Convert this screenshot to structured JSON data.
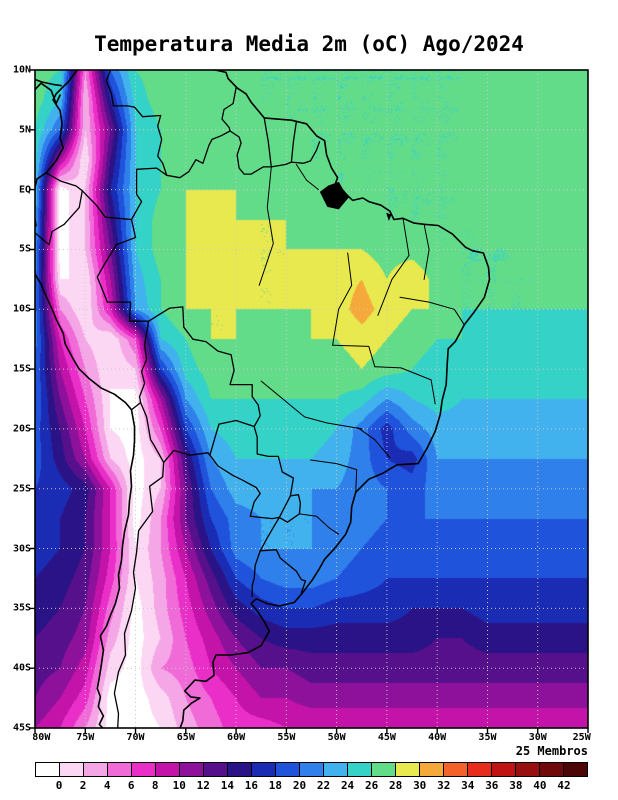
{
  "title": "Temperatura Media 2m (oC) Ago/2024",
  "ensemble_label": "25 Membros",
  "axes": {
    "lat_tick_labels": [
      "10N",
      "5N",
      "EQ",
      "5S",
      "10S",
      "15S",
      "20S",
      "25S",
      "30S",
      "35S",
      "40S",
      "45S"
    ],
    "lon_tick_labels": [
      "80W",
      "75W",
      "70W",
      "65W",
      "60W",
      "55W",
      "50W",
      "45W",
      "40W",
      "35W",
      "30W",
      "25W"
    ]
  },
  "colorbar": {
    "tick_labels": [
      "0",
      "2",
      "4",
      "6",
      "8",
      "10",
      "12",
      "14",
      "16",
      "18",
      "20",
      "22",
      "24",
      "26",
      "28",
      "30",
      "32",
      "34",
      "36",
      "38",
      "40",
      "42"
    ],
    "segment_colors": [
      "#ffffff",
      "#fbd7f3",
      "#f5a6e6",
      "#f06ad8",
      "#ea2fc8",
      "#c313a8",
      "#8d119b",
      "#57108c",
      "#2a1386",
      "#1b2cb4",
      "#2053dc",
      "#2f80ea",
      "#41b2ee",
      "#35d2c8",
      "#63dc8a",
      "#e8e84f",
      "#f6a93b",
      "#f2622a",
      "#e82c1c",
      "#c01414",
      "#980f0f",
      "#700a0a",
      "#4c0606"
    ]
  },
  "chart_data": {
    "type": "heatmap",
    "title": "Temperatura Media 2m (oC) Ago/2024",
    "variable": "Temperatura Media 2m",
    "units": "oC",
    "period": "Ago/2024",
    "ensemble_members": 25,
    "contour_interval": 2,
    "color_levels": [
      0,
      2,
      4,
      6,
      8,
      10,
      12,
      14,
      16,
      18,
      20,
      22,
      24,
      26,
      28,
      30,
      32,
      34,
      36,
      38,
      40,
      42
    ],
    "lon": [
      -80,
      -77.5,
      -75,
      -72.5,
      -70,
      -67.5,
      -65,
      -62.5,
      -60,
      -57.5,
      -55,
      -52.5,
      -50,
      -47.5,
      -45,
      -42.5,
      -40,
      -37.5,
      -35,
      -32.5,
      -30,
      -27.5,
      -25
    ],
    "lat_north_to_south": [
      10,
      7.5,
      5,
      2.5,
      0,
      -2.5,
      -5,
      -7.5,
      -10,
      -12.5,
      -15,
      -17.5,
      -20,
      -22.5,
      -25,
      -27.5,
      -30,
      -32.5,
      -35,
      -37.5,
      -40,
      -42.5,
      -45
    ],
    "values_north_to_south": [
      [
        27,
        26,
        4,
        20,
        26,
        27,
        27,
        27,
        26,
        26,
        26,
        26,
        26,
        26,
        26,
        26,
        26,
        26,
        27,
        27,
        27,
        27,
        27
      ],
      [
        27,
        24,
        2,
        16,
        25,
        27,
        27,
        27,
        27,
        26,
        26,
        26,
        26,
        26,
        26,
        26,
        26,
        26,
        27,
        27,
        27,
        27,
        27
      ],
      [
        26,
        20,
        2,
        12,
        24,
        26,
        27,
        27,
        27,
        27,
        26,
        26,
        26,
        26,
        26,
        26,
        26,
        26,
        27,
        27,
        27,
        27,
        27
      ],
      [
        25,
        10,
        0,
        14,
        24,
        26,
        27,
        28,
        27,
        27,
        27,
        26,
        26,
        26,
        26,
        26,
        26,
        26,
        27,
        27,
        27,
        27,
        27
      ],
      [
        24,
        -1,
        2,
        16,
        24,
        26,
        28,
        28,
        28,
        27,
        27,
        27,
        26,
        26,
        26,
        26,
        26,
        26,
        27,
        27,
        27,
        27,
        27
      ],
      [
        23,
        -1,
        2,
        14,
        24,
        27,
        28,
        29,
        28,
        28,
        28,
        27,
        27,
        27,
        26,
        26,
        26,
        26,
        26,
        27,
        27,
        27,
        27
      ],
      [
        22,
        -1,
        2,
        12,
        24,
        27,
        28,
        29,
        29,
        28,
        28,
        28,
        28,
        28,
        27,
        27,
        26,
        26,
        26,
        26,
        27,
        27,
        27
      ],
      [
        21,
        0,
        0,
        10,
        23,
        26,
        28,
        29,
        29,
        28,
        28,
        29,
        29,
        30,
        28,
        30,
        27,
        26,
        26,
        26,
        26,
        27,
        27
      ],
      [
        21,
        4,
        0,
        8,
        22,
        26,
        28,
        28,
        28,
        28,
        28,
        28,
        29,
        31,
        29,
        28,
        28,
        26,
        26,
        26,
        26,
        26,
        26
      ],
      [
        21,
        8,
        2,
        0,
        6,
        24,
        26,
        28,
        28,
        27,
        27,
        28,
        28,
        29,
        28,
        27,
        26,
        26,
        25,
        25,
        25,
        25,
        25
      ],
      [
        20,
        10,
        4,
        0,
        2,
        18,
        25,
        27,
        27,
        27,
        27,
        27,
        27,
        28,
        27,
        26,
        25,
        25,
        25,
        25,
        25,
        25,
        24
      ],
      [
        20,
        12,
        6,
        0,
        -1,
        10,
        22,
        26,
        26,
        26,
        26,
        26,
        26,
        25,
        22,
        24,
        25,
        24,
        24,
        24,
        24,
        24,
        24
      ],
      [
        19,
        14,
        8,
        0,
        -1,
        6,
        18,
        24,
        25,
        25,
        25,
        25,
        24,
        21,
        17,
        21,
        23,
        23,
        23,
        23,
        23,
        23,
        23
      ],
      [
        19,
        15,
        10,
        2,
        -1,
        2,
        14,
        22,
        24,
        24,
        24,
        24,
        23,
        21,
        18,
        17,
        22,
        22,
        22,
        22,
        22,
        22,
        22
      ],
      [
        18,
        17,
        15,
        8,
        -1,
        2,
        12,
        20,
        23,
        23,
        23,
        22,
        22,
        21,
        20,
        19,
        21,
        21,
        21,
        21,
        21,
        21,
        21
      ],
      [
        18,
        16,
        14,
        8,
        -1,
        4,
        12,
        18,
        21,
        22,
        22,
        22,
        21,
        21,
        20,
        20,
        20,
        20,
        20,
        20,
        20,
        20,
        20
      ],
      [
        17,
        16,
        14,
        8,
        0,
        4,
        10,
        16,
        21,
        22,
        22,
        22,
        21,
        20,
        19,
        19,
        19,
        19,
        19,
        19,
        19,
        19,
        19
      ],
      [
        16,
        15,
        13,
        7,
        0,
        3,
        8,
        13,
        18,
        20,
        21,
        21,
        20,
        19,
        18,
        18,
        18,
        18,
        18,
        18,
        18,
        18,
        18
      ],
      [
        15,
        14,
        12,
        5,
        -1,
        3,
        7,
        11,
        15,
        17,
        18,
        18,
        17,
        17,
        17,
        16,
        16,
        16,
        17,
        17,
        17,
        17,
        17
      ],
      [
        14,
        13,
        11,
        3,
        -1,
        2,
        6,
        9,
        12,
        14,
        15,
        15,
        15,
        15,
        15,
        15,
        14,
        14,
        15,
        15,
        15,
        15,
        15
      ],
      [
        13,
        12,
        9,
        1,
        -1,
        4,
        5,
        8,
        10,
        12,
        12,
        13,
        13,
        13,
        13,
        13,
        13,
        13,
        13,
        13,
        13,
        13,
        13
      ],
      [
        12,
        10,
        7,
        -1,
        -1,
        1,
        4,
        6,
        8,
        10,
        10,
        11,
        11,
        11,
        11,
        11,
        11,
        11,
        11,
        11,
        11,
        11,
        11
      ],
      [
        10,
        8,
        4,
        -1,
        -1,
        0,
        3,
        5,
        7,
        7,
        8,
        8,
        8,
        8,
        8,
        8,
        8,
        8,
        8,
        8,
        8,
        8,
        8
      ]
    ]
  }
}
